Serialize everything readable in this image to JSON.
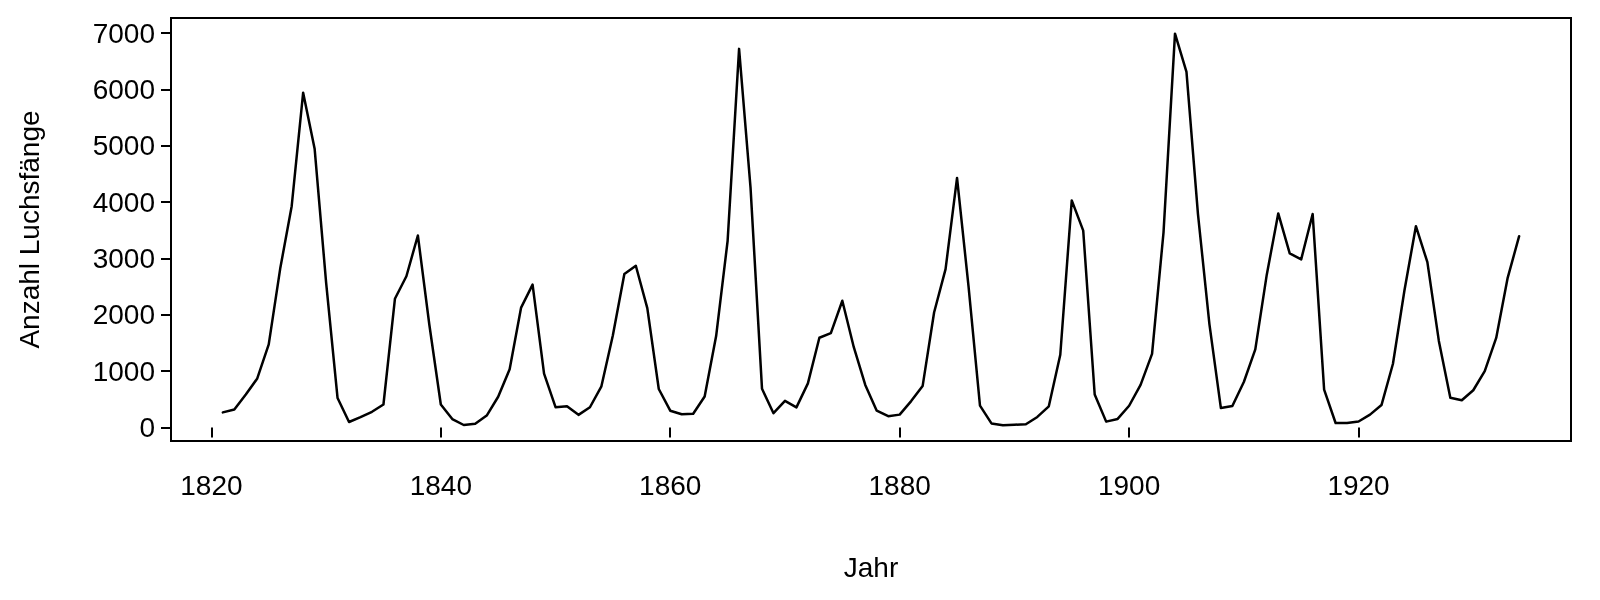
{
  "chart_data": {
    "type": "line",
    "xlabel": "Jahr",
    "ylabel": "Anzahl Luchsfänge",
    "x": [
      1821,
      1822,
      1823,
      1824,
      1825,
      1826,
      1827,
      1828,
      1829,
      1830,
      1831,
      1832,
      1833,
      1834,
      1835,
      1836,
      1837,
      1838,
      1839,
      1840,
      1841,
      1842,
      1843,
      1844,
      1845,
      1846,
      1847,
      1848,
      1849,
      1850,
      1851,
      1852,
      1853,
      1854,
      1855,
      1856,
      1857,
      1858,
      1859,
      1860,
      1861,
      1862,
      1863,
      1864,
      1865,
      1866,
      1867,
      1868,
      1869,
      1870,
      1871,
      1872,
      1873,
      1874,
      1875,
      1876,
      1877,
      1878,
      1879,
      1880,
      1881,
      1882,
      1883,
      1884,
      1885,
      1886,
      1887,
      1888,
      1889,
      1890,
      1891,
      1892,
      1893,
      1894,
      1895,
      1896,
      1897,
      1898,
      1899,
      1900,
      1901,
      1902,
      1903,
      1904,
      1905,
      1906,
      1907,
      1908,
      1909,
      1910,
      1911,
      1912,
      1913,
      1914,
      1915,
      1916,
      1917,
      1918,
      1919,
      1920,
      1921,
      1922,
      1923,
      1924,
      1925,
      1926,
      1927,
      1928,
      1929,
      1930,
      1931,
      1932,
      1933,
      1934
    ],
    "values": [
      269,
      321,
      585,
      871,
      1475,
      2821,
      3928,
      5943,
      4950,
      2577,
      523,
      98,
      184,
      279,
      409,
      2285,
      2685,
      3409,
      1824,
      409,
      151,
      45,
      68,
      213,
      546,
      1033,
      2129,
      2536,
      957,
      361,
      377,
      225,
      360,
      731,
      1638,
      2725,
      2871,
      2119,
      684,
      299,
      236,
      245,
      552,
      1623,
      3311,
      6721,
      4254,
      687,
      255,
      473,
      358,
      784,
      1594,
      1676,
      2251,
      1426,
      756,
      299,
      201,
      229,
      469,
      736,
      2042,
      2811,
      4431,
      2511,
      389,
      73,
      39,
      49,
      59,
      188,
      377,
      1292,
      4031,
      3495,
      587,
      105,
      153,
      387,
      758,
      1307,
      3465,
      6991,
      6313,
      3794,
      1836,
      345,
      382,
      808,
      1388,
      2713,
      3800,
      3091,
      2985,
      3790,
      674,
      81,
      80,
      108,
      229,
      399,
      1132,
      2432,
      3574,
      2935,
      1537,
      529,
      485,
      662,
      1000,
      1590,
      2657,
      3396
    ],
    "color": "#000000",
    "marker": "none",
    "line_style": "solid",
    "grid": false,
    "xlim": [
      1816.48,
      1938.52
    ],
    "xticks": [
      1820,
      1840,
      1860,
      1880,
      1900,
      1920
    ],
    "ylim": [
      -239,
      7269
    ],
    "yticks": [
      0,
      1000,
      2000,
      3000,
      4000,
      5000,
      6000,
      7000
    ]
  }
}
